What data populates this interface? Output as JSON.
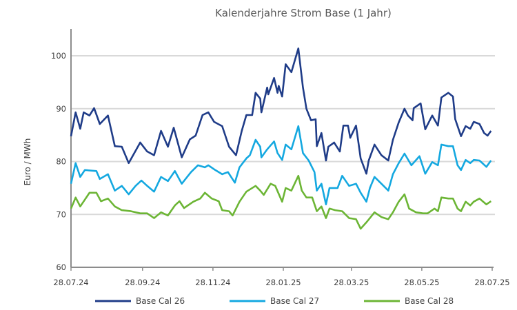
{
  "chart_data": {
    "type": "line",
    "title": "Kalenderjahre Strom Base (1 Jahr)",
    "xlabel": "",
    "ylabel": "Euro / MWh",
    "ylim": [
      60,
      105
    ],
    "xlim_days": [
      0,
      365
    ],
    "y_ticks": [
      "60",
      "70",
      "80",
      "90",
      "100"
    ],
    "y_tick_values": [
      60,
      70,
      80,
      90,
      100
    ],
    "x_ticks": [
      "28.07.24",
      "28.09.24",
      "28.11.24",
      "28.01.25",
      "28.03.25",
      "28.05.25",
      "28.07.25"
    ],
    "x_tick_days": [
      0,
      62,
      123,
      184,
      243,
      304,
      365
    ],
    "grid": "horizontal",
    "legend_position": "bottom",
    "series": [
      {
        "name": "Base Cal 26",
        "color": "#1f3c88",
        "x_days": [
          0,
          4,
          8,
          11,
          16,
          20,
          25,
          32,
          38,
          44,
          50,
          60,
          66,
          72,
          78,
          84,
          89,
          96,
          103,
          108,
          114,
          119,
          124,
          131,
          137,
          143,
          148,
          152,
          157,
          160,
          164,
          165,
          170,
          171,
          176,
          179,
          180,
          183,
          186,
          191,
          197,
          201,
          204,
          208,
          212,
          213,
          217,
          221,
          223,
          228,
          233,
          236,
          240,
          242,
          247,
          251,
          256,
          258,
          263,
          269,
          275,
          279,
          284,
          289,
          292,
          296,
          297,
          303,
          307,
          313,
          318,
          321,
          327,
          331,
          333,
          338,
          342,
          346,
          349,
          354,
          358,
          361,
          364
        ],
        "values": [
          84.8,
          89.3,
          86.2,
          89.3,
          88.7,
          90.1,
          87.1,
          88.7,
          82.9,
          82.8,
          79.7,
          83.6,
          81.9,
          81.2,
          85.8,
          82.8,
          86.4,
          80.8,
          84.2,
          84.9,
          88.8,
          89.3,
          87.5,
          86.7,
          82.8,
          81.2,
          85.8,
          88.8,
          88.8,
          93.0,
          91.9,
          89.3,
          94.0,
          92.7,
          95.8,
          93.0,
          94.3,
          92.3,
          98.4,
          96.9,
          101.4,
          94.0,
          90.0,
          87.8,
          88.0,
          82.9,
          85.4,
          80.2,
          82.8,
          83.6,
          81.9,
          86.8,
          86.8,
          84.5,
          86.8,
          80.6,
          77.7,
          80.2,
          83.2,
          81.2,
          80.2,
          84.1,
          87.4,
          90.0,
          88.7,
          87.8,
          90.1,
          91.0,
          86.1,
          88.7,
          86.8,
          92.1,
          93.0,
          92.3,
          88.0,
          84.8,
          86.7,
          86.2,
          87.5,
          87.1,
          85.4,
          84.9,
          85.8
        ]
      },
      {
        "name": "Base Cal 27",
        "color": "#14a8e0",
        "x_days": [
          0,
          4,
          8,
          12,
          22,
          25,
          32,
          38,
          44,
          50,
          56,
          61,
          66,
          72,
          78,
          84,
          90,
          96,
          104,
          110,
          116,
          119,
          125,
          131,
          136,
          142,
          146,
          152,
          155,
          160,
          164,
          165,
          170,
          176,
          179,
          183,
          186,
          191,
          197,
          201,
          206,
          211,
          213,
          217,
          221,
          224,
          231,
          235,
          241,
          247,
          251,
          256,
          259,
          263,
          269,
          275,
          279,
          284,
          289,
          295,
          302,
          307,
          313,
          318,
          321,
          327,
          331,
          335,
          338,
          342,
          346,
          349,
          354,
          360,
          364
        ],
        "values": [
          75.8,
          79.7,
          77.1,
          78.4,
          78.2,
          76.7,
          77.6,
          74.5,
          75.4,
          73.8,
          75.4,
          76.4,
          75.4,
          74.3,
          77.1,
          76.3,
          78.2,
          75.8,
          78.0,
          79.3,
          78.9,
          79.3,
          78.4,
          77.6,
          78.0,
          76.0,
          78.9,
          80.6,
          81.2,
          84.1,
          82.8,
          80.8,
          82.3,
          83.8,
          81.6,
          80.3,
          83.2,
          82.3,
          86.7,
          81.6,
          80.2,
          78.0,
          74.5,
          75.8,
          71.9,
          75.0,
          75.0,
          77.3,
          75.4,
          75.8,
          74.1,
          72.4,
          75.0,
          77.1,
          75.8,
          74.5,
          77.6,
          79.7,
          81.5,
          79.3,
          81.0,
          77.7,
          79.9,
          79.3,
          83.2,
          82.9,
          82.9,
          79.3,
          78.4,
          80.3,
          79.7,
          80.3,
          80.2,
          79.0,
          80.2
        ]
      },
      {
        "name": "Base Cal 28",
        "color": "#6cb535",
        "x_days": [
          0,
          4,
          8,
          12,
          16,
          22,
          26,
          32,
          38,
          44,
          52,
          60,
          66,
          72,
          78,
          84,
          90,
          94,
          98,
          106,
          112,
          116,
          122,
          128,
          131,
          137,
          140,
          146,
          152,
          160,
          164,
          167,
          173,
          177,
          183,
          186,
          191,
          197,
          200,
          204,
          209,
          213,
          217,
          221,
          224,
          229,
          235,
          241,
          247,
          251,
          256,
          259,
          263,
          269,
          275,
          279,
          284,
          289,
          293,
          299,
          305,
          309,
          315,
          318,
          321,
          327,
          331,
          335,
          338,
          342,
          346,
          349,
          354,
          360,
          364
        ],
        "values": [
          71.1,
          73.2,
          71.5,
          72.8,
          74.1,
          74.1,
          72.5,
          73.0,
          71.5,
          70.8,
          70.6,
          70.2,
          70.2,
          69.3,
          70.4,
          69.8,
          71.7,
          72.5,
          71.2,
          72.4,
          73.0,
          74.1,
          73.0,
          72.5,
          70.8,
          70.6,
          69.8,
          72.4,
          74.3,
          75.4,
          74.5,
          73.7,
          75.8,
          75.4,
          72.4,
          75.0,
          74.5,
          77.3,
          74.5,
          73.2,
          73.2,
          70.6,
          71.5,
          69.3,
          71.1,
          70.8,
          70.6,
          69.3,
          69.1,
          67.3,
          68.5,
          69.3,
          70.4,
          69.5,
          69.1,
          70.4,
          72.4,
          73.8,
          71.1,
          70.4,
          70.2,
          70.2,
          71.1,
          70.6,
          73.2,
          73.0,
          73.0,
          71.1,
          70.6,
          72.4,
          71.7,
          72.4,
          73.0,
          71.9,
          72.5
        ]
      }
    ]
  }
}
